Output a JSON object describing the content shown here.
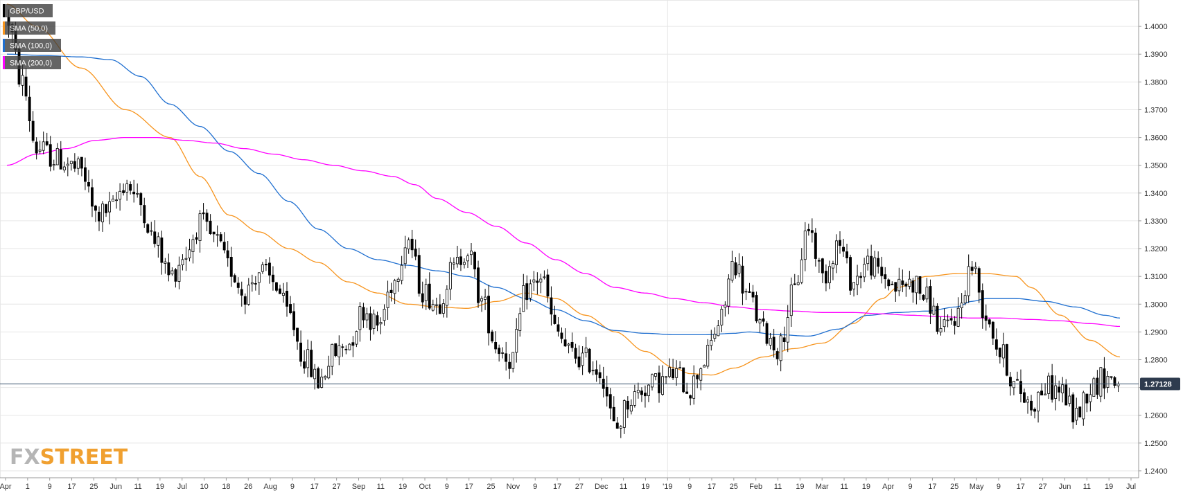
{
  "chart_data": {
    "type": "candlestick",
    "symbol": "GBP/USD",
    "timeframe": "daily",
    "ylim": [
      1.2375,
      1.4095
    ],
    "grid": true,
    "legend_placement": "top-left",
    "current_price": "1.27128",
    "y_ticks": [
      "1.2400",
      "1.2500",
      "1.2600",
      "1.2700",
      "1.2800",
      "1.2900",
      "1.3000",
      "1.3100",
      "1.3200",
      "1.3300",
      "1.3400",
      "1.3500",
      "1.3600",
      "1.3700",
      "1.3800",
      "1.3900",
      "1.4000"
    ],
    "x_ticks": [
      "Apr",
      "1",
      "9",
      "17",
      "25",
      "Jun",
      "11",
      "19",
      "Jul",
      "10",
      "18",
      "26",
      "Aug",
      "9",
      "17",
      "27",
      "Sep",
      "11",
      "19",
      "Oct",
      "9",
      "17",
      "25",
      "Nov",
      "9",
      "17",
      "27",
      "Dec",
      "11",
      "19",
      "'19",
      "9",
      "17",
      "25",
      "Feb",
      "11",
      "19",
      "Mar",
      "11",
      "19",
      "Apr",
      "9",
      "17",
      "25",
      "May",
      "9",
      "17",
      "27",
      "Jun",
      "11",
      "19",
      "Jul"
    ],
    "series": [
      {
        "name": "SMA (50,0)",
        "color": "#f7941d",
        "anchors": [
          [
            0,
            1.408
          ],
          [
            0.04,
            1.4
          ],
          [
            0.1,
            1.385
          ],
          [
            0.16,
            1.37
          ],
          [
            0.22,
            1.36
          ],
          [
            0.26,
            1.346
          ],
          [
            0.3,
            1.332
          ],
          [
            0.34,
            1.326
          ],
          [
            0.38,
            1.32
          ],
          [
            0.42,
            1.315
          ],
          [
            0.46,
            1.308
          ],
          [
            0.5,
            1.304
          ],
          [
            0.54,
            1.3
          ],
          [
            0.58,
            1.299
          ],
          [
            0.62,
            1.2985
          ],
          [
            0.66,
            1.301
          ],
          [
            0.7,
            1.304
          ],
          [
            0.74,
            1.302
          ],
          [
            0.78,
            1.296
          ],
          [
            0.82,
            1.29
          ],
          [
            0.86,
            1.283
          ],
          [
            0.9,
            1.277
          ],
          [
            0.92,
            1.275
          ],
          [
            0.95,
            1.2745
          ],
          [
            0.98,
            1.277
          ],
          [
            1.02,
            1.281
          ],
          [
            1.06,
            1.284
          ],
          [
            1.1,
            1.286
          ],
          [
            1.14,
            1.293
          ],
          [
            1.18,
            1.302
          ],
          [
            1.2,
            1.306
          ],
          [
            1.24,
            1.31
          ],
          [
            1.28,
            1.311
          ],
          [
            1.32,
            1.311
          ],
          [
            1.36,
            1.31
          ],
          [
            1.38,
            1.306
          ],
          [
            1.42,
            1.296
          ],
          [
            1.46,
            1.287
          ],
          [
            1.5,
            1.281
          ]
        ]
      },
      {
        "name": "SMA (100,0)",
        "color": "#1f6fd0",
        "anchors": [
          [
            0,
            1.39
          ],
          [
            0.05,
            1.3895
          ],
          [
            0.1,
            1.389
          ],
          [
            0.14,
            1.388
          ],
          [
            0.18,
            1.382
          ],
          [
            0.22,
            1.372
          ],
          [
            0.26,
            1.364
          ],
          [
            0.3,
            1.355
          ],
          [
            0.34,
            1.347
          ],
          [
            0.38,
            1.337
          ],
          [
            0.42,
            1.327
          ],
          [
            0.46,
            1.32
          ],
          [
            0.5,
            1.316
          ],
          [
            0.54,
            1.314
          ],
          [
            0.58,
            1.312
          ],
          [
            0.62,
            1.31
          ],
          [
            0.66,
            1.306
          ],
          [
            0.7,
            1.302
          ],
          [
            0.74,
            1.298
          ],
          [
            0.78,
            1.294
          ],
          [
            0.82,
            1.2905
          ],
          [
            0.86,
            1.2895
          ],
          [
            0.9,
            1.289
          ],
          [
            0.94,
            1.289
          ],
          [
            0.98,
            1.2895
          ],
          [
            1.0,
            1.29
          ],
          [
            1.04,
            1.289
          ],
          [
            1.08,
            1.2885
          ],
          [
            1.12,
            1.291
          ],
          [
            1.16,
            1.296
          ],
          [
            1.2,
            1.297
          ],
          [
            1.24,
            1.2975
          ],
          [
            1.28,
            1.299
          ],
          [
            1.3,
            1.301
          ],
          [
            1.32,
            1.302
          ],
          [
            1.36,
            1.302
          ],
          [
            1.4,
            1.301
          ],
          [
            1.44,
            1.299
          ],
          [
            1.48,
            1.296
          ],
          [
            1.5,
            1.295
          ]
        ]
      },
      {
        "name": "SMA (200,0)",
        "color": "#ff00ff",
        "anchors": [
          [
            0,
            1.35
          ],
          [
            0.04,
            1.354
          ],
          [
            0.08,
            1.356
          ],
          [
            0.12,
            1.359
          ],
          [
            0.16,
            1.36
          ],
          [
            0.2,
            1.36
          ],
          [
            0.24,
            1.359
          ],
          [
            0.28,
            1.358
          ],
          [
            0.32,
            1.356
          ],
          [
            0.36,
            1.354
          ],
          [
            0.4,
            1.352
          ],
          [
            0.44,
            1.35
          ],
          [
            0.48,
            1.348
          ],
          [
            0.52,
            1.346
          ],
          [
            0.55,
            1.343
          ],
          [
            0.58,
            1.338
          ],
          [
            0.62,
            1.333
          ],
          [
            0.66,
            1.328
          ],
          [
            0.7,
            1.322
          ],
          [
            0.74,
            1.316
          ],
          [
            0.78,
            1.311
          ],
          [
            0.82,
            1.306
          ],
          [
            0.86,
            1.304
          ],
          [
            0.9,
            1.302
          ],
          [
            0.94,
            1.3005
          ],
          [
            0.98,
            1.299
          ],
          [
            1.02,
            1.298
          ],
          [
            1.06,
            1.2975
          ],
          [
            1.1,
            1.297
          ],
          [
            1.14,
            1.297
          ],
          [
            1.18,
            1.2965
          ],
          [
            1.22,
            1.296
          ],
          [
            1.26,
            1.2955
          ],
          [
            1.3,
            1.295
          ],
          [
            1.34,
            1.295
          ],
          [
            1.38,
            1.2945
          ],
          [
            1.42,
            1.294
          ],
          [
            1.46,
            1.293
          ],
          [
            1.5,
            1.292
          ]
        ]
      }
    ],
    "price_anchors": [
      [
        0,
        1.403
      ],
      [
        0.02,
        1.38
      ],
      [
        0.04,
        1.356
      ],
      [
        0.07,
        1.352
      ],
      [
        0.1,
        1.348
      ],
      [
        0.12,
        1.332
      ],
      [
        0.14,
        1.334
      ],
      [
        0.16,
        1.344
      ],
      [
        0.18,
        1.336
      ],
      [
        0.2,
        1.322
      ],
      [
        0.22,
        1.31
      ],
      [
        0.24,
        1.318
      ],
      [
        0.26,
        1.329
      ],
      [
        0.28,
        1.323
      ],
      [
        0.3,
        1.313
      ],
      [
        0.32,
        1.304
      ],
      [
        0.34,
        1.312
      ],
      [
        0.36,
        1.308
      ],
      [
        0.38,
        1.296
      ],
      [
        0.4,
        1.281
      ],
      [
        0.42,
        1.272
      ],
      [
        0.44,
        1.282
      ],
      [
        0.46,
        1.286
      ],
      [
        0.48,
        1.298
      ],
      [
        0.5,
        1.292
      ],
      [
        0.52,
        1.308
      ],
      [
        0.54,
        1.324
      ],
      [
        0.56,
        1.305
      ],
      [
        0.58,
        1.3
      ],
      [
        0.6,
        1.312
      ],
      [
        0.62,
        1.32
      ],
      [
        0.64,
        1.301
      ],
      [
        0.66,
        1.285
      ],
      [
        0.68,
        1.28
      ],
      [
        0.7,
        1.305
      ],
      [
        0.72,
        1.31
      ],
      [
        0.74,
        1.29
      ],
      [
        0.76,
        1.282
      ],
      [
        0.78,
        1.28
      ],
      [
        0.8,
        1.276
      ],
      [
        0.82,
        1.255
      ],
      [
        0.84,
        1.266
      ],
      [
        0.86,
        1.27
      ],
      [
        0.88,
        1.272
      ],
      [
        0.9,
        1.275
      ],
      [
        0.92,
        1.27
      ],
      [
        0.94,
        1.28
      ],
      [
        0.96,
        1.293
      ],
      [
        0.98,
        1.315
      ],
      [
        1.0,
        1.302
      ],
      [
        1.02,
        1.29
      ],
      [
        1.04,
        1.284
      ],
      [
        1.06,
        1.304
      ],
      [
        1.08,
        1.328
      ],
      [
        1.1,
        1.31
      ],
      [
        1.12,
        1.322
      ],
      [
        1.14,
        1.308
      ],
      [
        1.16,
        1.315
      ],
      [
        1.18,
        1.31
      ],
      [
        1.2,
        1.306
      ],
      [
        1.22,
        1.308
      ],
      [
        1.24,
        1.302
      ],
      [
        1.26,
        1.29
      ],
      [
        1.28,
        1.296
      ],
      [
        1.3,
        1.314
      ],
      [
        1.32,
        1.296
      ],
      [
        1.34,
        1.282
      ],
      [
        1.36,
        1.27
      ],
      [
        1.38,
        1.264
      ],
      [
        1.4,
        1.27
      ],
      [
        1.42,
        1.269
      ],
      [
        1.44,
        1.26
      ],
      [
        1.46,
        1.27
      ],
      [
        1.48,
        1.274
      ],
      [
        1.5,
        1.2713
      ]
    ]
  },
  "legend": [
    {
      "label": "GBP/USD",
      "color": "#000000"
    },
    {
      "label": "SMA (50,0)",
      "color": "#f7941d"
    },
    {
      "label": "SMA (100,0)",
      "color": "#1f6fd0"
    },
    {
      "label": "SMA (200,0)",
      "color": "#ff00ff"
    }
  ],
  "logo": {
    "part1": "FX",
    "part2": "STREET"
  },
  "colors": {
    "grid": "#e6e6e6",
    "price_line": "#2e4a66",
    "price_badge": "#2e3b4e",
    "bull_fill": "#ffffff",
    "bear_fill": "#000000",
    "wick": "#000000"
  }
}
